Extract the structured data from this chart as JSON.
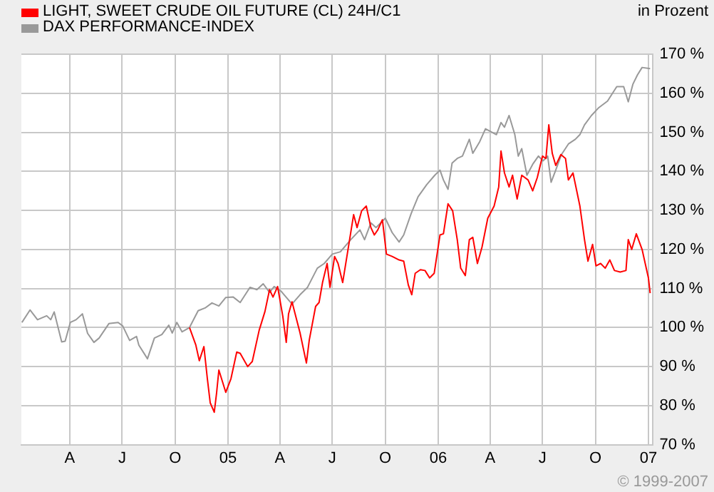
{
  "chart_data": {
    "type": "line",
    "ylabel": "in Prozent",
    "annotations": [
      "© 1999-2007"
    ],
    "xlim": [
      "2004-01-08",
      "2007-01-08"
    ],
    "xticks": [
      {
        "value": "2004-04-01",
        "label": "A"
      },
      {
        "value": "2004-07-01",
        "label": "J"
      },
      {
        "value": "2004-10-01",
        "label": "O"
      },
      {
        "value": "2005-01-01",
        "label": "05"
      },
      {
        "value": "2005-04-01",
        "label": "A"
      },
      {
        "value": "2005-07-01",
        "label": "J"
      },
      {
        "value": "2005-10-01",
        "label": "O"
      },
      {
        "value": "2006-01-01",
        "label": "06"
      },
      {
        "value": "2006-04-01",
        "label": "A"
      },
      {
        "value": "2006-07-01",
        "label": "J"
      },
      {
        "value": "2006-10-01",
        "label": "O"
      },
      {
        "value": "2007-01-01",
        "label": "07"
      }
    ],
    "ylim": [
      70,
      170
    ],
    "yticks": [
      {
        "value": 70,
        "label": "70 %"
      },
      {
        "value": 80,
        "label": "80 %"
      },
      {
        "value": 90,
        "label": "90 %"
      },
      {
        "value": 100,
        "label": "100 %"
      },
      {
        "value": 110,
        "label": "110 %"
      },
      {
        "value": 120,
        "label": "120 %"
      },
      {
        "value": 130,
        "label": "130 %"
      },
      {
        "value": 140,
        "label": "140 %"
      },
      {
        "value": 150,
        "label": "150 %"
      },
      {
        "value": 160,
        "label": "160 %"
      },
      {
        "value": 170,
        "label": "170 %"
      }
    ],
    "grid": true,
    "legend": "top left",
    "marker": "none",
    "line_style": "solid",
    "series": [
      {
        "name": "LIGHT, SWEET CRUDE OIL FUTURE (CL) 24H/C1",
        "color": "#ff0000",
        "x": [
          "2004-10-26",
          "2004-11-06",
          "2004-11-12",
          "2004-11-20",
          "2004-11-26",
          "2004-12-01",
          "2004-12-08",
          "2004-12-12",
          "2004-12-16",
          "2004-12-28",
          "2005-01-06",
          "2005-01-16",
          "2005-01-22",
          "2005-02-04",
          "2005-02-12",
          "2005-02-24",
          "2005-03-06",
          "2005-03-14",
          "2005-03-20",
          "2005-03-28",
          "2005-04-06",
          "2005-04-12",
          "2005-04-16",
          "2005-04-22",
          "2005-05-06",
          "2005-05-17",
          "2005-05-22",
          "2005-06-02",
          "2005-06-08",
          "2005-06-14",
          "2005-06-22",
          "2005-06-27",
          "2005-07-05",
          "2005-07-11",
          "2005-07-19",
          "2005-07-27",
          "2005-08-07",
          "2005-08-13",
          "2005-08-21",
          "2005-08-29",
          "2005-09-06",
          "2005-09-12",
          "2005-09-18",
          "2005-09-26",
          "2005-10-03",
          "2005-10-13",
          "2005-10-25",
          "2005-11-02",
          "2005-11-10",
          "2005-11-16",
          "2005-11-22",
          "2005-12-01",
          "2005-12-09",
          "2005-12-17",
          "2005-12-25",
          "2006-01-04",
          "2006-01-10",
          "2006-01-18",
          "2006-01-26",
          "2006-02-03",
          "2006-02-09",
          "2006-02-17",
          "2006-02-24",
          "2006-03-02",
          "2006-03-10",
          "2006-03-18",
          "2006-03-28",
          "2006-04-08",
          "2006-04-16",
          "2006-04-20",
          "2006-04-26",
          "2006-05-04",
          "2006-05-10",
          "2006-05-18",
          "2006-05-26",
          "2006-06-06",
          "2006-06-14",
          "2006-06-22",
          "2006-07-01",
          "2006-07-07",
          "2006-07-12",
          "2006-07-18",
          "2006-07-24",
          "2006-08-02",
          "2006-08-10",
          "2006-08-15",
          "2006-08-23",
          "2006-09-04",
          "2006-09-12",
          "2006-09-18",
          "2006-09-26",
          "2006-10-02",
          "2006-10-10",
          "2006-10-18",
          "2006-10-26",
          "2006-11-03",
          "2006-11-13",
          "2006-11-23",
          "2006-11-27",
          "2006-12-03",
          "2006-12-11",
          "2006-12-21",
          "2007-01-01",
          "2007-01-04"
        ],
        "values": [
          100,
          95.5,
          91.5,
          95.1,
          86.9,
          80.7,
          78.3,
          83.2,
          89.1,
          83.4,
          86.9,
          93.7,
          93.4,
          90,
          91.3,
          99.3,
          104.1,
          109.7,
          107.8,
          110.5,
          102.9,
          96.2,
          103.5,
          106.6,
          98.6,
          90.9,
          96.8,
          105.4,
          106.4,
          111.5,
          116.4,
          110.3,
          118.2,
          116.4,
          111.5,
          118.8,
          128.9,
          125.6,
          129.9,
          131.1,
          125.6,
          123.7,
          125,
          127.6,
          118.8,
          118.2,
          117.3,
          117,
          110.9,
          108.4,
          113.9,
          114.8,
          114.6,
          112.7,
          113.9,
          123.7,
          124,
          131.7,
          129.9,
          122.5,
          115.2,
          113.3,
          122.5,
          123.1,
          116.4,
          120.6,
          128,
          131.1,
          136,
          145.2,
          139.6,
          136,
          139,
          132.9,
          139,
          137.8,
          135,
          138.4,
          143.9,
          143.3,
          151.9,
          144.6,
          141.5,
          144.3,
          143.3,
          137.8,
          139.6,
          131.1,
          122.5,
          117,
          121.3,
          115.8,
          116.4,
          115.2,
          117.3,
          114.6,
          114.2,
          114.6,
          122.5,
          120,
          124,
          120,
          112.7,
          108.8
        ]
      },
      {
        "name": "DAX PERFORMANCE-INDEX",
        "color": "#999999",
        "x": [
          "2004-01-09",
          "2004-01-23",
          "2004-02-05",
          "2004-02-21",
          "2004-02-28",
          "2004-03-05",
          "2004-03-18",
          "2004-03-24",
          "2004-04-02",
          "2004-04-12",
          "2004-04-23",
          "2004-05-02",
          "2004-05-13",
          "2004-05-22",
          "2004-06-08",
          "2004-06-24",
          "2004-07-02",
          "2004-07-14",
          "2004-07-26",
          "2004-07-30",
          "2004-08-14",
          "2004-08-26",
          "2004-09-08",
          "2004-09-20",
          "2004-09-26",
          "2004-10-04",
          "2004-10-13",
          "2004-10-26",
          "2004-11-10",
          "2004-11-22",
          "2004-12-04",
          "2004-12-16",
          "2004-12-28",
          "2005-01-10",
          "2005-01-22",
          "2005-02-08",
          "2005-02-20",
          "2005-03-03",
          "2005-03-14",
          "2005-03-22",
          "2005-04-03",
          "2005-04-22",
          "2005-05-06",
          "2005-05-19",
          "2005-06-05",
          "2005-06-17",
          "2005-07-01",
          "2005-07-15",
          "2005-08-02",
          "2005-08-18",
          "2005-08-26",
          "2005-09-06",
          "2005-09-15",
          "2005-10-01",
          "2005-10-13",
          "2005-10-25",
          "2005-11-02",
          "2005-11-15",
          "2005-11-27",
          "2005-12-12",
          "2005-12-26",
          "2006-01-04",
          "2006-01-10",
          "2006-01-18",
          "2006-01-25",
          "2006-02-03",
          "2006-02-12",
          "2006-02-24",
          "2006-03-02",
          "2006-03-14",
          "2006-03-24",
          "2006-04-12",
          "2006-04-20",
          "2006-04-26",
          "2006-05-04",
          "2006-05-14",
          "2006-05-20",
          "2006-05-26",
          "2006-06-04",
          "2006-06-14",
          "2006-06-24",
          "2006-07-02",
          "2006-07-10",
          "2006-07-16",
          "2006-07-24",
          "2006-08-03",
          "2006-08-15",
          "2006-08-27",
          "2006-09-04",
          "2006-09-12",
          "2006-09-24",
          "2006-10-06",
          "2006-10-22",
          "2006-11-07",
          "2006-11-19",
          "2006-11-27",
          "2006-12-05",
          "2006-12-13",
          "2006-12-21",
          "2007-01-04"
        ],
        "values": [
          101.3,
          104.5,
          102,
          103,
          102,
          104,
          96.3,
          96.5,
          101.3,
          102,
          103.5,
          98.5,
          96.2,
          97.3,
          101,
          101.3,
          100.4,
          96.7,
          97.7,
          95.5,
          92,
          97.3,
          98.2,
          100.6,
          98.6,
          101.3,
          98.9,
          100,
          104.3,
          105,
          106.3,
          105.5,
          107.7,
          107.8,
          106.4,
          110.3,
          109.7,
          111.2,
          109,
          110.5,
          109.3,
          106,
          108.4,
          110.3,
          115.2,
          116.4,
          118.8,
          119.4,
          122.5,
          125,
          122.5,
          126.8,
          125.6,
          128,
          124.3,
          121.9,
          123.7,
          129.2,
          133.5,
          136.6,
          139,
          140.3,
          137.8,
          135.4,
          142.1,
          143.3,
          143.9,
          148.2,
          144.6,
          147.6,
          150.9,
          149.4,
          152.5,
          151.3,
          154.3,
          149.4,
          143.9,
          145.8,
          139,
          141.8,
          143.9,
          142.7,
          143.9,
          137.2,
          140.3,
          144.3,
          147,
          148.2,
          149.4,
          151.9,
          154.3,
          156.2,
          158,
          161.7,
          161.7,
          157.8,
          162.3,
          164.7,
          166.6,
          166.3
        ]
      }
    ]
  }
}
